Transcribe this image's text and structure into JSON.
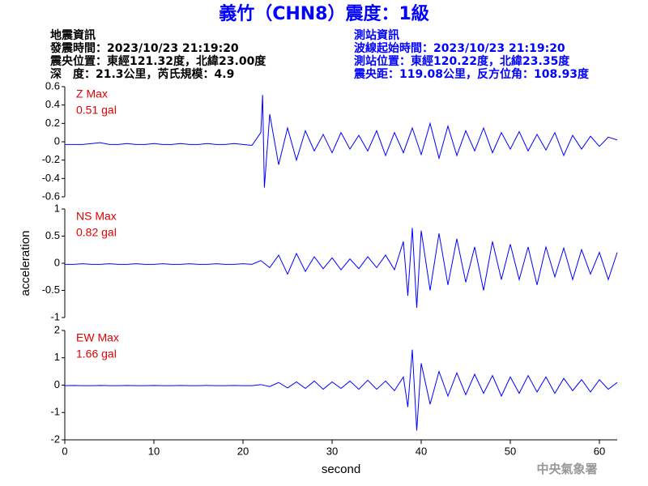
{
  "header": {
    "title": "義竹（CHN8）震度：1級",
    "left": [
      "地震資訊",
      "發震時間：2023/10/23 21:19:20",
      "震央位置：東經121.32度，北緯23.00度",
      "深　度：21.3公里，芮氏規模：4.9"
    ],
    "right": [
      "測站資訊",
      "波線起始時間：2023/10/23 21:19:20",
      "測站位置：東經120.22度，北緯23.35度",
      "震央距：119.08公里，反方位角：108.93度"
    ],
    "credit": "中央氣象署"
  },
  "chart_data": [
    {
      "type": "line",
      "annotations": [
        "Z Max",
        "0.51 gal"
      ],
      "xlim": [
        0,
        62
      ],
      "ylim": [
        -0.6,
        0.6
      ],
      "yticks": [
        0.6,
        0.4,
        0.2,
        0,
        -0.2,
        -0.4,
        -0.6
      ],
      "x": [
        0,
        1,
        2,
        3,
        4,
        5,
        6,
        7,
        8,
        9,
        10,
        11,
        12,
        13,
        14,
        15,
        16,
        17,
        18,
        19,
        20,
        21,
        22,
        22.2,
        22.4,
        23,
        24,
        25,
        26,
        27,
        28,
        29,
        30,
        31,
        32,
        33,
        34,
        35,
        36,
        37,
        38,
        39,
        40,
        41,
        42,
        43,
        44,
        45,
        46,
        47,
        48,
        49,
        50,
        51,
        52,
        53,
        54,
        55,
        56,
        57,
        58,
        59,
        60,
        61,
        62
      ],
      "series": [
        {
          "color": "#0000ff",
          "values": [
            -0.03,
            -0.03,
            -0.03,
            -0.02,
            -0.01,
            -0.03,
            -0.03,
            -0.02,
            -0.03,
            -0.03,
            -0.02,
            -0.03,
            -0.03,
            -0.02,
            -0.03,
            -0.03,
            -0.02,
            -0.03,
            -0.03,
            -0.02,
            -0.03,
            -0.04,
            0.1,
            0.51,
            -0.5,
            0.3,
            -0.25,
            0.15,
            -0.2,
            0.12,
            -0.1,
            0.08,
            -0.12,
            0.1,
            -0.08,
            0.07,
            -0.1,
            0.12,
            -0.15,
            0.1,
            -0.12,
            0.15,
            -0.14,
            0.2,
            -0.18,
            0.17,
            -0.15,
            0.12,
            -0.1,
            0.15,
            -0.12,
            0.1,
            -0.08,
            0.11,
            -0.1,
            0.08,
            -0.09,
            0.1,
            -0.15,
            0.07,
            -0.08,
            0.06,
            -0.05,
            0.05,
            0.02
          ]
        }
      ]
    },
    {
      "type": "line",
      "annotations": [
        "NS Max",
        "0.82 gal"
      ],
      "y_label": "acceleration",
      "xlim": [
        0,
        62
      ],
      "ylim": [
        -1,
        1
      ],
      "yticks": [
        1,
        0.5,
        0,
        -0.5,
        -1
      ],
      "x": [
        0,
        1,
        2,
        3,
        4,
        5,
        6,
        7,
        8,
        9,
        10,
        11,
        12,
        13,
        14,
        15,
        16,
        17,
        18,
        19,
        20,
        21,
        22,
        23,
        24,
        25,
        26,
        27,
        28,
        29,
        30,
        31,
        32,
        33,
        34,
        35,
        36,
        37,
        38,
        38.5,
        39,
        39.5,
        40,
        41,
        42,
        43,
        44,
        45,
        46,
        47,
        48,
        49,
        50,
        51,
        52,
        53,
        54,
        55,
        56,
        57,
        58,
        59,
        60,
        61,
        62
      ],
      "series": [
        {
          "color": "#0000ff",
          "values": [
            -0.02,
            -0.02,
            -0.01,
            -0.02,
            -0.02,
            -0.01,
            -0.02,
            -0.02,
            -0.01,
            -0.02,
            -0.02,
            -0.01,
            -0.02,
            -0.02,
            -0.01,
            -0.02,
            -0.02,
            -0.01,
            -0.02,
            -0.02,
            -0.01,
            -0.02,
            0.05,
            -0.08,
            0.15,
            -0.2,
            0.18,
            -0.15,
            0.12,
            -0.1,
            0.1,
            -0.12,
            0.08,
            -0.1,
            0.12,
            -0.08,
            0.15,
            -0.12,
            0.4,
            -0.6,
            0.65,
            -0.82,
            0.6,
            -0.5,
            0.55,
            -0.4,
            0.45,
            -0.35,
            0.3,
            -0.5,
            0.4,
            -0.3,
            0.35,
            -0.3,
            0.3,
            -0.4,
            0.3,
            -0.25,
            0.28,
            -0.3,
            0.25,
            -0.2,
            0.2,
            -0.3,
            0.2
          ]
        }
      ]
    },
    {
      "type": "line",
      "annotations": [
        "EW Max",
        "1.66 gal"
      ],
      "x_label": "second",
      "xlim": [
        0,
        62
      ],
      "ylim": [
        -2,
        2
      ],
      "yticks": [
        2,
        1,
        0,
        -1,
        -2
      ],
      "xticks": [
        0,
        10,
        20,
        30,
        40,
        50,
        60
      ],
      "x": [
        0,
        1,
        2,
        3,
        4,
        5,
        6,
        7,
        8,
        9,
        10,
        11,
        12,
        13,
        14,
        15,
        16,
        17,
        18,
        19,
        20,
        21,
        22,
        23,
        24,
        25,
        26,
        27,
        28,
        29,
        30,
        31,
        32,
        33,
        34,
        35,
        36,
        37,
        38,
        38.5,
        39,
        39.5,
        40,
        41,
        42,
        43,
        44,
        45,
        46,
        47,
        48,
        49,
        50,
        51,
        52,
        53,
        54,
        55,
        56,
        57,
        58,
        59,
        60,
        61,
        62
      ],
      "series": [
        {
          "color": "#0000ff",
          "values": [
            -0.02,
            -0.01,
            -0.02,
            -0.02,
            -0.01,
            -0.02,
            -0.02,
            -0.01,
            -0.02,
            -0.02,
            -0.01,
            -0.02,
            -0.02,
            -0.01,
            -0.02,
            -0.02,
            -0.01,
            -0.02,
            -0.02,
            -0.01,
            -0.02,
            -0.02,
            0.02,
            -0.05,
            0.1,
            -0.1,
            0.12,
            -0.12,
            0.15,
            -0.15,
            0.12,
            -0.12,
            0.15,
            -0.15,
            0.18,
            -0.15,
            0.15,
            -0.2,
            0.3,
            -0.8,
            1.3,
            -1.66,
            0.8,
            -0.7,
            0.5,
            -0.4,
            0.45,
            -0.35,
            0.4,
            -0.3,
            0.35,
            -0.4,
            0.3,
            -0.3,
            0.35,
            -0.25,
            0.3,
            -0.3,
            0.25,
            -0.2,
            0.2,
            -0.25,
            0.2,
            -0.15,
            0.1
          ]
        }
      ]
    }
  ]
}
